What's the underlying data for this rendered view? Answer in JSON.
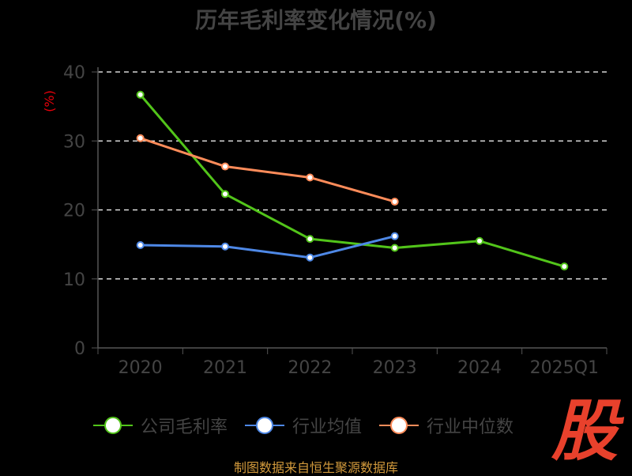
{
  "chart_data": {
    "type": "line",
    "title": "历年毛利率变化情况(%)",
    "ylabel": "(%)",
    "categories": [
      "2020",
      "2021",
      "2022",
      "2023",
      "2024",
      "2025Q1"
    ],
    "yticks": [
      "0",
      "10",
      "20",
      "30",
      "40"
    ],
    "ylim": [
      0,
      40
    ],
    "grid": true,
    "legend_position": "bottom",
    "series": [
      {
        "name": "公司毛利率",
        "color": "#52c41a",
        "values": [
          36.7,
          22.3,
          15.8,
          14.5,
          15.5,
          11.8
        ]
      },
      {
        "name": "行业均值",
        "color": "#4e88e6",
        "values": [
          14.9,
          14.7,
          13.1,
          16.2,
          null,
          null
        ]
      },
      {
        "name": "行业中位数",
        "color": "#ff8c5a",
        "values": [
          30.4,
          26.3,
          24.7,
          21.2,
          null,
          null
        ]
      }
    ]
  },
  "footer": {
    "source": "制图数据来自恒生聚源数据库",
    "logo": "股"
  }
}
